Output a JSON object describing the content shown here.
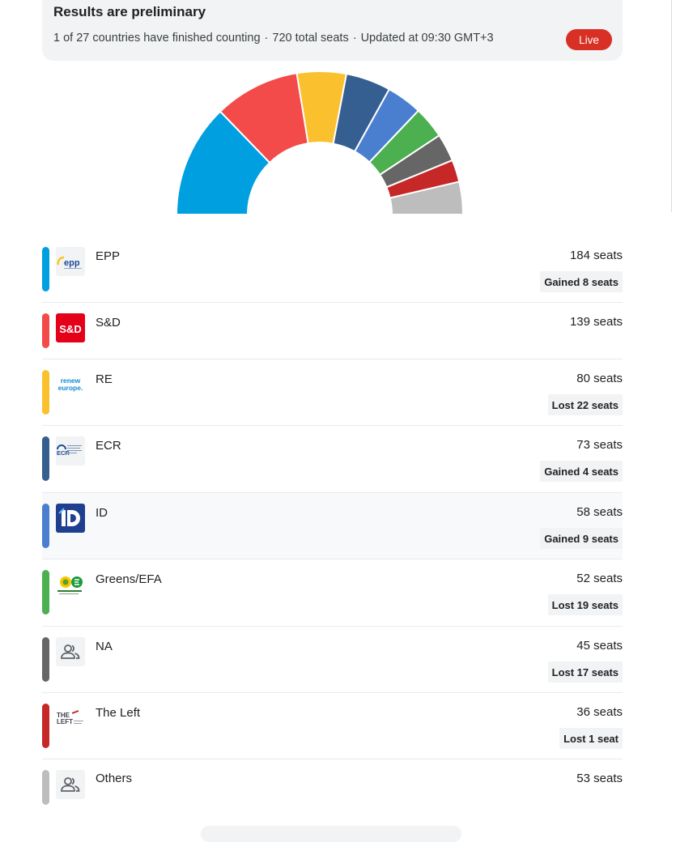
{
  "header": {
    "title": "Results are preliminary",
    "countries_status": "1 of 27 countries have finished counting",
    "separator": "·",
    "total_seats": "720 total seats",
    "updated": "Updated at 09:30 GMT+3",
    "live_label": "Live"
  },
  "colors": {
    "live_badge": "#d93025",
    "card_background": "#f1f3f4"
  },
  "parties": [
    {
      "name": "EPP",
      "seats_label": "184 seats",
      "seats": 184,
      "change": "Gained 8 seats",
      "color": "#009fe0",
      "logo": "epp-logo"
    },
    {
      "name": "S&D",
      "seats_label": "139 seats",
      "seats": 139,
      "change": "",
      "color": "#f34a4a",
      "logo": "sd-logo",
      "logo_text": "S&D"
    },
    {
      "name": "RE",
      "seats_label": "80 seats",
      "seats": 80,
      "change": "Lost 22 seats",
      "color": "#fbc02d",
      "logo": "renew-europe-logo",
      "logo_text_1": "renew",
      "logo_text_2": "europe."
    },
    {
      "name": "ECR",
      "seats_label": "73 seats",
      "seats": 73,
      "change": "Gained 4 seats",
      "color": "#355f91",
      "logo": "ecr-logo",
      "logo_text": "ECR"
    },
    {
      "name": "ID",
      "seats_label": "58 seats",
      "seats": 58,
      "change": "Gained 9 seats",
      "color": "#4a7ecf",
      "logo": "id-logo"
    },
    {
      "name": "Greens/EFA",
      "seats_label": "52 seats",
      "seats": 52,
      "change": "Lost 19 seats",
      "color": "#4caf50",
      "logo": "greens-efa-logo"
    },
    {
      "name": "NA",
      "seats_label": "45 seats",
      "seats": 45,
      "change": "Lost 17 seats",
      "color": "#666666",
      "logo": "people-icon"
    },
    {
      "name": "The Left",
      "seats_label": "36 seats",
      "seats": 36,
      "change": "Lost 1 seat",
      "color": "#c62828",
      "logo": "the-left-logo",
      "logo_text_1": "THE",
      "logo_text_2": "LEFT"
    },
    {
      "name": "Others",
      "seats_label": "53 seats",
      "seats": 53,
      "change": "",
      "color": "#bdbdbd",
      "logo": "people-icon"
    }
  ]
}
